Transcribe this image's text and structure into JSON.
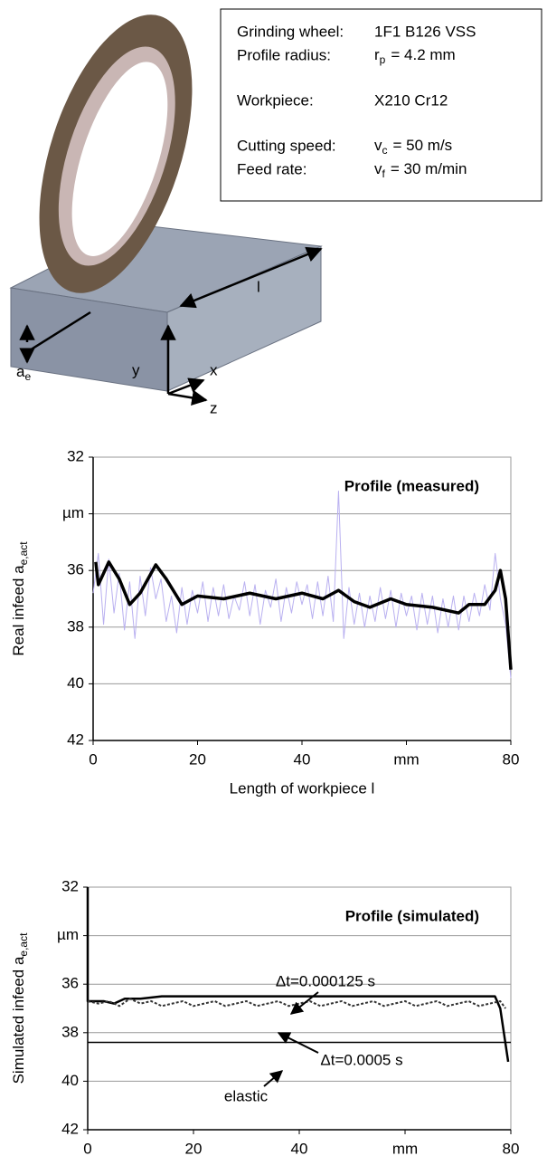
{
  "diagram": {
    "params": [
      {
        "label": "Grinding wheel:",
        "value": "1F1 B126 VSS"
      },
      {
        "label": "Profile radius:",
        "symbol": "r",
        "sub": "p",
        "value": "= 4.2 mm"
      },
      {
        "label": "Workpiece:",
        "value": "X210 Cr12"
      },
      {
        "label": "Cutting speed:",
        "symbol": "v",
        "sub": "c",
        "value": "= 50 m/s"
      },
      {
        "label": "Feed rate:",
        "symbol": "v",
        "sub": "f",
        "value": "= 30 m/min"
      }
    ],
    "axes": {
      "ae": "a",
      "ae_sub": "e",
      "l": "l",
      "x": "x",
      "y": "y",
      "z": "z"
    }
  },
  "chart_data": [
    {
      "type": "line",
      "title": "Profile (measured)",
      "ylabel": "Real infeed a",
      "ylabel_sub": "e,act",
      "xlabel": "Length of workpiece l",
      "xlim": [
        0,
        80
      ],
      "ylim": [
        32,
        42
      ],
      "y_inverted": true,
      "grid": true,
      "xticks": [
        0,
        20,
        40,
        {
          "value": 60,
          "label": "mm"
        },
        80
      ],
      "yticks": [
        32,
        {
          "value": 34,
          "label": "µm"
        },
        36,
        38,
        40,
        42
      ],
      "series": [
        {
          "color": "#b9b0f0",
          "width": 1,
          "x": [
            0,
            1,
            2,
            3,
            4,
            5,
            6,
            7,
            8,
            9,
            10,
            11,
            12,
            13,
            14,
            15,
            16,
            17,
            18,
            19,
            20,
            21,
            22,
            23,
            24,
            25,
            26,
            27,
            28,
            29,
            30,
            31,
            32,
            33,
            34,
            35,
            36,
            37,
            38,
            39,
            40,
            41,
            42,
            43,
            44,
            45,
            46,
            47,
            48,
            49,
            50,
            51,
            52,
            53,
            54,
            55,
            56,
            57,
            58,
            59,
            60,
            61,
            62,
            63,
            64,
            65,
            66,
            67,
            68,
            69,
            70,
            71,
            72,
            73,
            74,
            75,
            76,
            77,
            78,
            79,
            80
          ],
          "values": [
            36.8,
            35.4,
            37.9,
            35.6,
            37.5,
            36.1,
            38.1,
            36.4,
            38.4,
            36.2,
            37.6,
            35.9,
            37.0,
            36.3,
            37.8,
            36.9,
            38.2,
            36.6,
            37.9,
            36.7,
            37.5,
            36.4,
            37.8,
            36.6,
            37.6,
            36.5,
            37.7,
            36.9,
            37.4,
            36.4,
            37.6,
            36.5,
            37.9,
            36.7,
            37.3,
            36.3,
            37.8,
            36.6,
            37.5,
            36.4,
            37.2,
            36.5,
            37.7,
            36.4,
            37.6,
            36.2,
            37.8,
            33.2,
            38.4,
            36.6,
            37.9,
            36.8,
            38.0,
            36.9,
            37.8,
            36.6,
            37.7,
            36.7,
            38.0,
            36.8,
            37.6,
            36.9,
            38.1,
            36.8,
            37.9,
            36.9,
            38.2,
            37.0,
            38.0,
            36.9,
            38.1,
            36.9,
            37.8,
            36.8,
            37.6,
            36.5,
            37.4,
            35.4,
            37.0,
            37.9,
            39.8
          ]
        },
        {
          "color": "#000000",
          "width": 3.5,
          "x": [
            0.5,
            1,
            3,
            5,
            7,
            9,
            12,
            14,
            17,
            20,
            25,
            30,
            35,
            40,
            44,
            47,
            50,
            53,
            57,
            60,
            65,
            70,
            72,
            75,
            77,
            78,
            79,
            80
          ],
          "values": [
            35.7,
            36.5,
            35.7,
            36.3,
            37.2,
            36.8,
            35.8,
            36.3,
            37.2,
            36.9,
            37.0,
            36.8,
            37.0,
            36.8,
            37.0,
            36.7,
            37.1,
            37.3,
            37.0,
            37.2,
            37.3,
            37.5,
            37.2,
            37.2,
            36.7,
            36.0,
            37.0,
            39.5
          ]
        }
      ]
    },
    {
      "type": "line",
      "title": "Profile (simulated)",
      "ylabel": "Simulated infeed a",
      "ylabel_sub": "e,act",
      "xlim": [
        0,
        80
      ],
      "ylim": [
        32,
        42
      ],
      "y_inverted": true,
      "grid": true,
      "xticks": [
        0,
        20,
        40,
        {
          "value": 60,
          "label": "mm"
        },
        80
      ],
      "yticks": [
        32,
        {
          "value": 34,
          "label": "µm"
        },
        36,
        38,
        40,
        42
      ],
      "series": [
        {
          "name": "Δt=0.000125 s",
          "color": "#000000",
          "width": 2.5,
          "x": [
            0,
            0,
            3,
            5,
            7,
            10,
            14,
            20,
            40,
            60,
            77,
            78,
            79.5
          ],
          "values": [
            32,
            36.7,
            36.7,
            36.8,
            36.6,
            36.6,
            36.5,
            36.5,
            36.5,
            36.5,
            36.5,
            37.0,
            39.2
          ]
        },
        {
          "name": "Δt=0.0005 s",
          "color": "#333333",
          "width": 2,
          "dash": true,
          "x": [
            0,
            2,
            4,
            6,
            8,
            10,
            12,
            14,
            16,
            18,
            20,
            22,
            24,
            26,
            28,
            30,
            32,
            34,
            36,
            38,
            40,
            42,
            44,
            46,
            48,
            50,
            52,
            54,
            56,
            58,
            60,
            62,
            64,
            66,
            68,
            70,
            72,
            74,
            76,
            78,
            79
          ],
          "values": [
            36.7,
            36.8,
            36.7,
            36.9,
            36.6,
            36.8,
            36.7,
            36.9,
            36.8,
            36.7,
            36.9,
            36.8,
            36.7,
            36.9,
            36.8,
            36.7,
            36.9,
            36.8,
            36.7,
            36.9,
            36.8,
            36.7,
            36.9,
            36.8,
            36.7,
            36.9,
            36.8,
            36.7,
            36.9,
            36.8,
            36.7,
            36.9,
            36.8,
            36.7,
            36.9,
            36.8,
            36.7,
            36.9,
            36.8,
            36.7,
            37.0
          ]
        },
        {
          "name": "elastic",
          "color": "#000000",
          "width": 1.5,
          "x": [
            0,
            80
          ],
          "values": [
            38.4,
            38.4
          ]
        }
      ]
    }
  ]
}
